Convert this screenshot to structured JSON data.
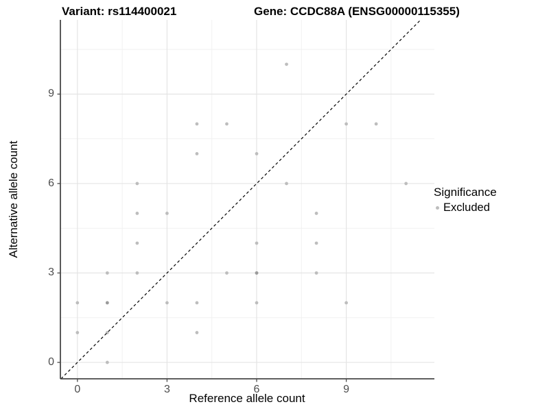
{
  "header": {
    "variant_title": "Variant: rs114400021",
    "gene_title": "Gene: CCDC88A (ENSG00000115355)"
  },
  "chart_data": {
    "type": "scatter",
    "title": "Variant: rs114400021 — Gene: CCDC88A (ENSG00000115355)",
    "xlabel": "Reference allele count",
    "ylabel": "Alternative allele count",
    "x_ticks": [
      0,
      3,
      6,
      9
    ],
    "y_ticks": [
      0,
      3,
      6,
      9
    ],
    "x_minor_gridlines": [
      1.5,
      4.5,
      7.5,
      10.5
    ],
    "y_minor_gridlines": [
      1.5,
      4.5,
      7.5,
      10.5
    ],
    "xlim": [
      -0.57,
      11.95
    ],
    "ylim": [
      -0.55,
      11.49
    ],
    "grid": true,
    "legend_position": "right",
    "identity_line": {
      "equation": "y = x",
      "style": "dashed",
      "color": "#000000"
    },
    "points": [
      [
        0,
        1
      ],
      [
        0,
        2
      ],
      [
        1,
        0
      ],
      [
        1,
        1
      ],
      [
        1,
        2
      ],
      [
        1,
        3
      ],
      [
        2,
        3
      ],
      [
        2,
        4
      ],
      [
        2,
        5
      ],
      [
        2,
        6
      ],
      [
        3,
        2
      ],
      [
        3,
        5
      ],
      [
        4,
        1
      ],
      [
        4,
        2
      ],
      [
        4,
        7
      ],
      [
        4,
        8
      ],
      [
        5,
        3
      ],
      [
        5,
        8
      ],
      [
        6,
        2
      ],
      [
        6,
        3
      ],
      [
        6,
        4
      ],
      [
        6,
        7
      ],
      [
        7,
        6
      ],
      [
        7,
        10
      ],
      [
        8,
        3
      ],
      [
        8,
        4
      ],
      [
        8,
        5
      ],
      [
        9,
        2
      ],
      [
        9,
        8
      ],
      [
        10,
        8
      ],
      [
        11,
        6
      ]
    ],
    "overplotted_points": [
      [
        1,
        2
      ],
      [
        6,
        3
      ]
    ],
    "point_color": "#bdbdbd",
    "overplot_color": "#9b9b9b",
    "legend": {
      "title": "Significance",
      "items": [
        {
          "label": "Excluded",
          "color": "#bdbdbd"
        }
      ]
    }
  },
  "colors": {
    "grid_major": "#e4e4e4",
    "grid_minor": "#f1f1f1",
    "axis_line": "#474747",
    "tick_mark": "#474747",
    "tick_label": "#4d4d4d"
  }
}
